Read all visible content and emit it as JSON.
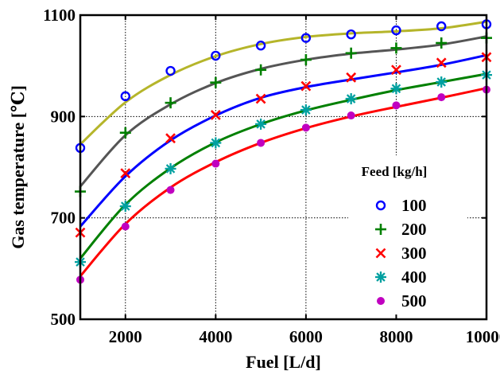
{
  "chart_data": {
    "type": "scatter",
    "xlabel": "Fuel [L/d]",
    "ylabel": "Gas temperature [℃]",
    "xlim": [
      1000,
      10000
    ],
    "ylim": [
      500,
      1100
    ],
    "xticks": [
      2000,
      4000,
      6000,
      8000,
      10000
    ],
    "yticks": [
      500,
      700,
      900,
      1100
    ],
    "grid": true,
    "legend": {
      "title": "Feed [kg/h]",
      "placement": "right"
    },
    "x": [
      1000,
      2000,
      3000,
      4000,
      5000,
      6000,
      7000,
      8000,
      9000,
      10000
    ],
    "series": [
      {
        "name": "100",
        "marker": "circle",
        "color": "#0000ff",
        "fit_color": "#b5b52a",
        "values": [
          838,
          940,
          990,
          1020,
          1040,
          1055,
          1062,
          1070,
          1078,
          1082
        ],
        "fit": [
          845,
          928,
          982,
          1019,
          1043,
          1057,
          1064,
          1068,
          1074,
          1087
        ]
      },
      {
        "name": "200",
        "marker": "plus",
        "color": "#008000",
        "fit_color": "#555555",
        "values": [
          752,
          868,
          927,
          967,
          992,
          1012,
          1025,
          1035,
          1045,
          1055
        ],
        "fit": [
          762,
          863,
          924,
          966,
          994,
          1012,
          1024,
          1032,
          1042,
          1058
        ]
      },
      {
        "name": "300",
        "marker": "x",
        "color": "#ff0000",
        "fit_color": "#0000ff",
        "values": [
          671,
          788,
          857,
          903,
          935,
          960,
          977,
          992,
          1006,
          1017
        ],
        "fit": [
          683,
          782,
          853,
          902,
          937,
          958,
          973,
          987,
          1002,
          1021
        ]
      },
      {
        "name": "400",
        "marker": "asterisk",
        "color": "#00a0a0",
        "fit_color": "#008000",
        "values": [
          613,
          723,
          797,
          848,
          885,
          913,
          935,
          955,
          968,
          982
        ],
        "fit": [
          620,
          726,
          798,
          849,
          885,
          912,
          933,
          952,
          968,
          984
        ]
      },
      {
        "name": "500",
        "marker": "dot",
        "color": "#c000c0",
        "fit_color": "#ff0000",
        "values": [
          578,
          683,
          755,
          807,
          848,
          878,
          902,
          922,
          938,
          953
        ],
        "fit": [
          585,
          688,
          760,
          810,
          848,
          877,
          900,
          919,
          937,
          956
        ]
      }
    ]
  }
}
